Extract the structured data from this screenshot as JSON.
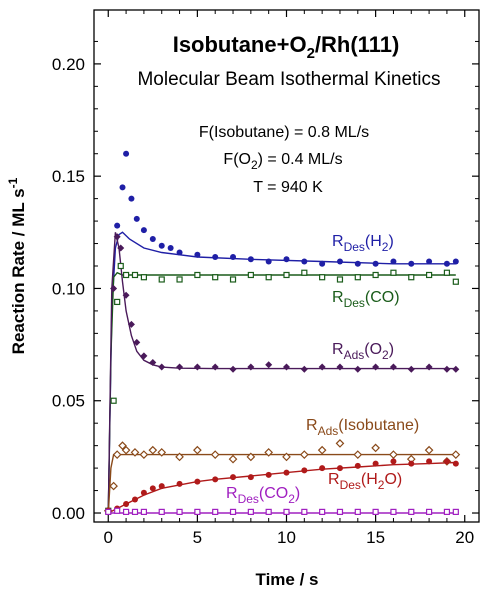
{
  "chart_data": {
    "type": "scatter",
    "title_main": "Isobutane+O",
    "title_sub": "2",
    "title_tail": "/Rh(111)",
    "subtitle": "Molecular Beam Isothermal Kinetics",
    "annotations": [
      {
        "pre": "F(Isobutane) = 0.8 ML/s",
        "sub": "",
        "post": ""
      },
      {
        "pre": "F(O",
        "sub": "2",
        "post": ") = 0.4 ML/s"
      },
      {
        "pre": "T = 940 K",
        "sub": "",
        "post": ""
      }
    ],
    "xlabel": "Time / s",
    "ylabel_main": "Reaction Rate / ML s",
    "ylabel_sup": "-1",
    "xlim": [
      -0.8,
      20.8
    ],
    "ylim": [
      -0.004,
      0.224
    ],
    "xticks": [
      0,
      5,
      10,
      15,
      20
    ],
    "xtick_labels": [
      "0",
      "5",
      "10",
      "15",
      "20"
    ],
    "yticks": [
      0,
      0.05,
      0.1,
      0.15,
      0.2
    ],
    "ytick_labels": [
      "0.00",
      "0.05",
      "0.10",
      "0.15",
      "0.20"
    ],
    "series": [
      {
        "label_main": "R",
        "label_sub": "Des",
        "label_mid": "(H",
        "label_sub2": "2",
        "label_end": ")",
        "color": "#1f1fa6",
        "marker": "circle",
        "x": [
          0,
          0.5,
          0.8,
          1.0,
          1.3,
          1.6,
          2.0,
          2.5,
          3,
          3.5,
          4,
          5,
          6,
          7,
          8,
          9,
          10,
          11,
          12,
          13,
          14,
          15,
          16,
          17,
          18,
          19,
          19.5
        ],
        "y": [
          0.001,
          0.128,
          0.145,
          0.16,
          0.14,
          0.131,
          0.126,
          0.122,
          0.119,
          0.118,
          0.116,
          0.115,
          0.114,
          0.114,
          0.113,
          0.112,
          0.113,
          0.112,
          0.111,
          0.112,
          0.111,
          0.111,
          0.112,
          0.111,
          0.112,
          0.111,
          0.112
        ],
        "fit_x": [
          0,
          0.2,
          0.4,
          0.6,
          0.8,
          1.2,
          2,
          3,
          5,
          8,
          12,
          16,
          19.5
        ],
        "fit_y": [
          0.0,
          0.09,
          0.118,
          0.124,
          0.125,
          0.122,
          0.118,
          0.116,
          0.114,
          0.113,
          0.112,
          0.111,
          0.111
        ]
      },
      {
        "label_main": "R",
        "label_sub": "Des",
        "label_mid": "(CO)",
        "label_sub2": "",
        "label_end": "",
        "color": "#1a5c1a",
        "marker": "square-open",
        "x": [
          0,
          0.3,
          0.5,
          0.7,
          1.0,
          1.5,
          2,
          3,
          4,
          5,
          6,
          7,
          8,
          9,
          10,
          11,
          12,
          13,
          14,
          15,
          16,
          17,
          18,
          19,
          19.5
        ],
        "y": [
          0.001,
          0.05,
          0.094,
          0.11,
          0.106,
          0.106,
          0.105,
          0.104,
          0.104,
          0.106,
          0.105,
          0.104,
          0.106,
          0.105,
          0.106,
          0.107,
          0.105,
          0.104,
          0.105,
          0.106,
          0.107,
          0.105,
          0.106,
          0.107,
          0.103
        ],
        "fit_x": [
          0,
          0.15,
          0.3,
          0.5,
          0.8,
          2,
          19.5
        ],
        "fit_y": [
          0.0,
          0.07,
          0.105,
          0.107,
          0.106,
          0.106,
          0.106
        ]
      },
      {
        "label_main": "R",
        "label_sub": "Ads",
        "label_mid": "(O",
        "label_sub2": "2",
        "label_end": ")",
        "color": "#4a1a5a",
        "marker": "diamond",
        "x": [
          0,
          0.3,
          0.5,
          0.7,
          1.0,
          1.3,
          1.6,
          2.0,
          2.5,
          3,
          4,
          5,
          6,
          7,
          8,
          9,
          10,
          11,
          12,
          13,
          14,
          15,
          16,
          17,
          18,
          19,
          19.5
        ],
        "y": [
          0.001,
          0.1,
          0.123,
          0.118,
          0.097,
          0.084,
          0.076,
          0.07,
          0.067,
          0.065,
          0.065,
          0.065,
          0.065,
          0.064,
          0.065,
          0.066,
          0.065,
          0.064,
          0.065,
          0.065,
          0.064,
          0.065,
          0.065,
          0.064,
          0.065,
          0.064,
          0.064
        ],
        "fit_x": [
          0,
          0.2,
          0.4,
          0.6,
          0.8,
          1.0,
          1.3,
          1.6,
          2.0,
          2.5,
          3,
          4,
          6,
          19.5
        ],
        "fit_y": [
          0.0,
          0.1,
          0.125,
          0.118,
          0.103,
          0.09,
          0.079,
          0.072,
          0.068,
          0.066,
          0.065,
          0.0645,
          0.0643,
          0.0643
        ]
      },
      {
        "label_main": "R",
        "label_sub": "Ads",
        "label_mid": "(Isobutane)",
        "label_sub2": "",
        "label_end": "",
        "color": "#8a4a1a",
        "marker": "diamond-open",
        "x": [
          0,
          0.3,
          0.5,
          0.8,
          1,
          1.5,
          2,
          2.5,
          3,
          4,
          5,
          6,
          7,
          8,
          9,
          10,
          11,
          12,
          13,
          14,
          15,
          16,
          17,
          18,
          19,
          19.5
        ],
        "y": [
          0.001,
          0.012,
          0.026,
          0.03,
          0.028,
          0.027,
          0.026,
          0.028,
          0.027,
          0.025,
          0.028,
          0.026,
          0.024,
          0.025,
          0.027,
          0.025,
          0.026,
          0.028,
          0.031,
          0.026,
          0.029,
          0.026,
          0.024,
          0.028,
          0.023,
          0.026
        ],
        "fit_x": [
          0,
          0.15,
          0.3,
          19.5
        ],
        "fit_y": [
          0.0,
          0.02,
          0.026,
          0.026
        ]
      },
      {
        "label_main": "R",
        "label_sub": "Des",
        "label_mid": "(H",
        "label_sub2": "2",
        "label_end": "O)",
        "color": "#b01a1a",
        "marker": "circle",
        "x": [
          0,
          0.5,
          1,
          1.5,
          2,
          2.5,
          3,
          4,
          5,
          6,
          7,
          8,
          9,
          10,
          11,
          12,
          13,
          14,
          15,
          16,
          17,
          18,
          19,
          19.5
        ],
        "y": [
          0.001,
          0.002,
          0.004,
          0.006,
          0.009,
          0.011,
          0.012,
          0.013,
          0.014,
          0.015,
          0.016,
          0.016,
          0.017,
          0.018,
          0.019,
          0.02,
          0.02,
          0.021,
          0.022,
          0.023,
          0.022,
          0.023,
          0.023,
          0.022
        ],
        "fit_x": [
          0,
          0.5,
          1,
          2,
          3,
          4,
          5,
          6,
          8,
          10,
          12,
          14,
          16,
          18,
          19.5
        ],
        "fit_y": [
          0.0,
          0.002,
          0.004,
          0.008,
          0.011,
          0.0125,
          0.014,
          0.015,
          0.0165,
          0.018,
          0.0195,
          0.0205,
          0.0215,
          0.022,
          0.0225
        ]
      },
      {
        "label_main": "R",
        "label_sub": "Des",
        "label_mid": "(CO",
        "label_sub2": "2",
        "label_end": ")",
        "color": "#a020c0",
        "marker": "square-open",
        "x": [
          0,
          0.5,
          1,
          1.5,
          2,
          3,
          4,
          5,
          6,
          7,
          8,
          9,
          10,
          11,
          12,
          13,
          14,
          15,
          16,
          17,
          18,
          19,
          19.5
        ],
        "y": [
          0.0005,
          0.001,
          0.0005,
          0.0005,
          0.0005,
          0.0005,
          0.0005,
          0.0005,
          0.0005,
          0.0005,
          0.0005,
          0.0005,
          0.0005,
          0.0005,
          0.0005,
          0.0005,
          0.0005,
          0.0005,
          0.0005,
          0.0005,
          0.0005,
          0.0005,
          0.0005
        ],
        "fit_x": [
          0,
          19.5
        ],
        "fit_y": [
          0.0,
          0.0
        ]
      }
    ]
  }
}
